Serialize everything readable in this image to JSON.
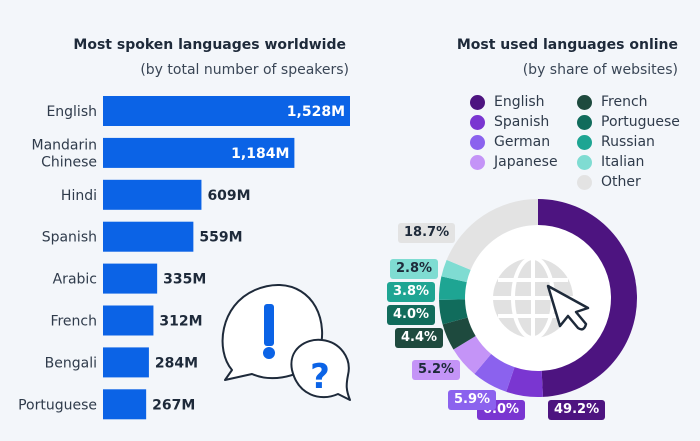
{
  "chart_data": [
    {
      "type": "bar",
      "orientation": "horizontal",
      "title": "Most spoken languages worldwide",
      "subtitle": "(by total number of speakers)",
      "categories": [
        "English",
        "Mandarin Chinese",
        "Hindi",
        "Spanish",
        "Arabic",
        "French",
        "Bengali",
        "Portuguese"
      ],
      "category_lines": [
        [
          "English"
        ],
        [
          "Mandarin",
          "Chinese"
        ],
        [
          "Hindi"
        ],
        [
          "Spanish"
        ],
        [
          "Arabic"
        ],
        [
          "French"
        ],
        [
          "Bengali"
        ],
        [
          "Portuguese"
        ]
      ],
      "values": [
        1528,
        1184,
        609,
        559,
        335,
        312,
        284,
        267
      ],
      "value_labels": [
        "1,528M",
        "1,184M",
        "609M",
        "559M",
        "335M",
        "312M",
        "284M",
        "267M"
      ],
      "unit": "M",
      "color": "#0b63e6",
      "xlim": [
        0,
        1528
      ]
    },
    {
      "type": "pie",
      "variant": "donut",
      "title": "Most used languages online",
      "subtitle": "(by share of websites)",
      "legend_position": "top",
      "slices": [
        {
          "name": "English",
          "value": 49.2,
          "label": "49.2%",
          "color": "#4d1480",
          "text_color": "#ffffff"
        },
        {
          "name": "Spanish",
          "value": 6.0,
          "label": "6.0%",
          "color": "#7a36d1",
          "text_color": "#ffffff"
        },
        {
          "name": "German",
          "value": 5.9,
          "label": "5.9%",
          "color": "#8b62ee",
          "text_color": "#ffffff"
        },
        {
          "name": "Japanese",
          "value": 5.2,
          "label": "5.2%",
          "color": "#c494f7",
          "text_color": "#1e2a3a"
        },
        {
          "name": "French",
          "value": 4.4,
          "label": "4.4%",
          "color": "#1e4a3e",
          "text_color": "#ffffff"
        },
        {
          "name": "Portuguese",
          "value": 4.0,
          "label": "4.0%",
          "color": "#116c5c",
          "text_color": "#ffffff"
        },
        {
          "name": "Russian",
          "value": 3.8,
          "label": "3.8%",
          "color": "#1ea593",
          "text_color": "#ffffff"
        },
        {
          "name": "Italian",
          "value": 2.8,
          "label": "2.8%",
          "color": "#7fdcd2",
          "text_color": "#1e2a3a"
        },
        {
          "name": "Other",
          "value": 18.7,
          "label": "18.7%",
          "color": "#e3e3e3",
          "text_color": "#1e2a3a"
        }
      ]
    }
  ],
  "legend_columns": [
    [
      "English",
      "Spanish",
      "German",
      "Japanese"
    ],
    [
      "French",
      "Portuguese",
      "Russian",
      "Italian",
      "Other"
    ]
  ]
}
